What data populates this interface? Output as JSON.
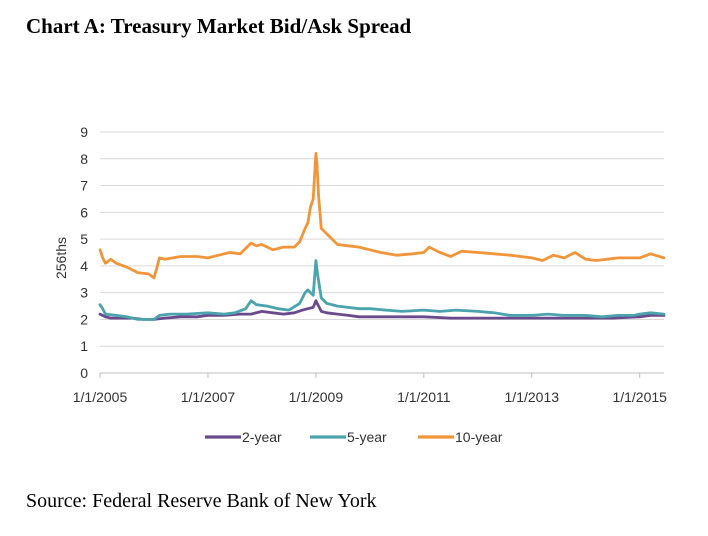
{
  "title": "Chart A: Treasury Market Bid/Ask Spread",
  "source": "Source: Federal Reserve Bank of New York",
  "chart_data": {
    "type": "line",
    "ylabel": "256ths",
    "xlabel": "",
    "ylim": [
      0,
      9
    ],
    "yticks": [
      "0",
      "1",
      "2",
      "3",
      "4",
      "5",
      "6",
      "7",
      "8",
      "9"
    ],
    "xlim": [
      2005.0,
      2015.45
    ],
    "xticks": [
      {
        "value": 2005,
        "label": "1/1/2005"
      },
      {
        "value": 2007,
        "label": "1/1/2007"
      },
      {
        "value": 2009,
        "label": "1/1/2009"
      },
      {
        "value": 2011,
        "label": "1/1/2011"
      },
      {
        "value": 2013,
        "label": "1/1/2013"
      },
      {
        "value": 2015,
        "label": "1/1/2015"
      }
    ],
    "grid": true,
    "legend": "bottom",
    "series": [
      {
        "name": "2-year",
        "color": "#6a4a8c",
        "x": [
          2005.0,
          2005.1,
          2005.2,
          2005.4,
          2005.6,
          2005.8,
          2006.0,
          2006.2,
          2006.5,
          2006.8,
          2007.0,
          2007.3,
          2007.6,
          2007.8,
          2008.0,
          2008.2,
          2008.4,
          2008.6,
          2008.75,
          2008.85,
          2008.95,
          2009.0,
          2009.05,
          2009.1,
          2009.2,
          2009.4,
          2009.6,
          2009.8,
          2010.0,
          2010.5,
          2011.0,
          2011.5,
          2012.0,
          2012.5,
          2013.0,
          2013.5,
          2014.0,
          2014.5,
          2015.0,
          2015.2,
          2015.45
        ],
        "values": [
          2.2,
          2.1,
          2.05,
          2.05,
          2.05,
          2.0,
          2.0,
          2.05,
          2.1,
          2.1,
          2.15,
          2.15,
          2.2,
          2.2,
          2.3,
          2.25,
          2.2,
          2.25,
          2.35,
          2.4,
          2.45,
          2.7,
          2.5,
          2.3,
          2.25,
          2.2,
          2.15,
          2.1,
          2.1,
          2.1,
          2.1,
          2.05,
          2.05,
          2.05,
          2.05,
          2.05,
          2.05,
          2.05,
          2.1,
          2.15,
          2.15
        ]
      },
      {
        "name": "5-year",
        "color": "#4aa3ad",
        "x": [
          2005.0,
          2005.05,
          2005.1,
          2005.3,
          2005.5,
          2005.7,
          2005.9,
          2006.0,
          2006.1,
          2006.3,
          2006.6,
          2007.0,
          2007.3,
          2007.5,
          2007.7,
          2007.8,
          2007.9,
          2008.1,
          2008.3,
          2008.5,
          2008.7,
          2008.8,
          2008.85,
          2008.95,
          2009.0,
          2009.03,
          2009.1,
          2009.2,
          2009.4,
          2009.6,
          2009.8,
          2010.0,
          2010.3,
          2010.6,
          2011.0,
          2011.3,
          2011.6,
          2012.0,
          2012.3,
          2012.6,
          2013.0,
          2013.3,
          2013.6,
          2014.0,
          2014.3,
          2014.6,
          2014.9,
          2015.0,
          2015.2,
          2015.45
        ],
        "values": [
          2.55,
          2.4,
          2.2,
          2.15,
          2.1,
          2.0,
          2.0,
          2.0,
          2.15,
          2.2,
          2.2,
          2.25,
          2.2,
          2.25,
          2.4,
          2.7,
          2.55,
          2.5,
          2.4,
          2.35,
          2.6,
          3.0,
          3.1,
          2.9,
          4.2,
          3.7,
          2.8,
          2.6,
          2.5,
          2.45,
          2.4,
          2.4,
          2.35,
          2.3,
          2.35,
          2.3,
          2.35,
          2.3,
          2.25,
          2.15,
          2.15,
          2.2,
          2.15,
          2.15,
          2.1,
          2.15,
          2.15,
          2.2,
          2.25,
          2.2
        ]
      },
      {
        "name": "10-year",
        "color": "#f0953a",
        "x": [
          2005.0,
          2005.05,
          2005.1,
          2005.2,
          2005.3,
          2005.5,
          2005.7,
          2005.9,
          2006.0,
          2006.05,
          2006.1,
          2006.2,
          2006.5,
          2006.8,
          2007.0,
          2007.2,
          2007.4,
          2007.6,
          2007.8,
          2007.9,
          2008.0,
          2008.2,
          2008.4,
          2008.6,
          2008.7,
          2008.8,
          2008.85,
          2008.9,
          2008.95,
          2009.0,
          2009.02,
          2009.05,
          2009.1,
          2009.2,
          2009.3,
          2009.4,
          2009.6,
          2009.8,
          2010.0,
          2010.2,
          2010.5,
          2010.8,
          2011.0,
          2011.1,
          2011.3,
          2011.5,
          2011.7,
          2012.0,
          2012.3,
          2012.6,
          2013.0,
          2013.2,
          2013.4,
          2013.6,
          2013.8,
          2014.0,
          2014.2,
          2014.4,
          2014.6,
          2014.8,
          2015.0,
          2015.2,
          2015.45
        ],
        "values": [
          4.6,
          4.3,
          4.1,
          4.25,
          4.1,
          3.95,
          3.75,
          3.7,
          3.55,
          3.9,
          4.3,
          4.25,
          4.35,
          4.35,
          4.3,
          4.4,
          4.5,
          4.45,
          4.85,
          4.75,
          4.8,
          4.6,
          4.7,
          4.7,
          4.9,
          5.4,
          5.6,
          6.2,
          6.5,
          8.2,
          7.8,
          6.6,
          5.4,
          5.2,
          5.0,
          4.8,
          4.75,
          4.7,
          4.6,
          4.5,
          4.4,
          4.45,
          4.5,
          4.7,
          4.5,
          4.35,
          4.55,
          4.5,
          4.45,
          4.4,
          4.3,
          4.2,
          4.4,
          4.3,
          4.5,
          4.25,
          4.2,
          4.25,
          4.3,
          4.3,
          4.3,
          4.45,
          4.3
        ]
      }
    ]
  }
}
